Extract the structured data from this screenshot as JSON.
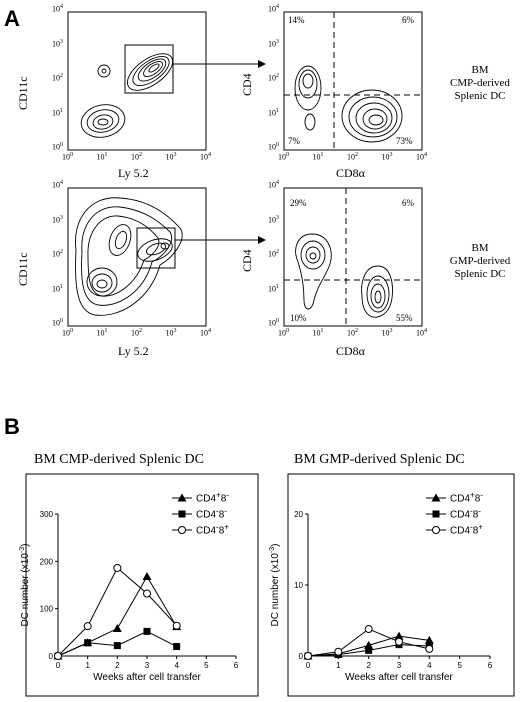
{
  "panel_a": {
    "letter": "A",
    "rows": [
      {
        "gate_plot": {
          "ylabel": "CD11c",
          "xlabel": "Ly 5.2"
        },
        "quad_plot": {
          "ylabel": "CD4",
          "xlabel": "CD8α",
          "quadrants": {
            "ul": "14%",
            "ur": "6%",
            "ll": "7%",
            "lr": "73%"
          }
        },
        "label": [
          "BM",
          "CMP-derived",
          "Splenic DC"
        ]
      },
      {
        "gate_plot": {
          "ylabel": "CD11c",
          "xlabel": "Ly 5.2"
        },
        "quad_plot": {
          "ylabel": "CD4",
          "xlabel": "CD8α",
          "quadrants": {
            "ul": "29%",
            "ur": "6%",
            "ll": "10%",
            "lr": "55%"
          }
        },
        "label": [
          "BM",
          "GMP-derived",
          "Splenic DC"
        ]
      }
    ],
    "log_ticks": [
      "10",
      "10",
      "10",
      "10",
      "10"
    ],
    "log_exps": [
      "0",
      "1",
      "2",
      "3",
      "4"
    ]
  },
  "panel_b": {
    "letter": "B",
    "legend_labels": [
      "CD4+8-",
      "CD4-8-",
      "CD4-8+"
    ],
    "legend_html": [
      {
        "main": "CD4",
        "sup": "+",
        "main2": "8",
        "sup2": "-"
      },
      {
        "main": "CD4",
        "sup": "-",
        "main2": "8",
        "sup2": "-"
      },
      {
        "main": "CD4",
        "sup": "-",
        "main2": "8",
        "sup2": "+"
      }
    ]
  },
  "chart_data": [
    {
      "type": "line",
      "title": "BM CMP-derived Splenic DC",
      "xlabel": "Weeks after cell transfer",
      "ylabel": "DC number (x10-3)",
      "xlim": [
        0,
        6
      ],
      "ylim": [
        0,
        300
      ],
      "xticks": [
        0,
        1,
        2,
        3,
        4,
        5,
        6
      ],
      "yticks": [
        0,
        100,
        200,
        300
      ],
      "legend": "top-right",
      "series": [
        {
          "name": "CD4+8-",
          "marker": "triangle-filled",
          "x": [
            0,
            1,
            2,
            3,
            4
          ],
          "y": [
            0,
            28,
            58,
            168,
            62
          ]
        },
        {
          "name": "CD4-8-",
          "marker": "square-filled",
          "x": [
            0,
            1,
            2,
            3,
            4
          ],
          "y": [
            0,
            28,
            22,
            52,
            20
          ]
        },
        {
          "name": "CD4-8+",
          "marker": "circle-open",
          "x": [
            0,
            1,
            2,
            3,
            4
          ],
          "y": [
            0,
            63,
            186,
            132,
            64
          ]
        }
      ]
    },
    {
      "type": "line",
      "title": "BM GMP-derived Splenic DC",
      "xlabel": "Weeks after cell transfer",
      "ylabel": "DC number (x10-3)",
      "xlim": [
        0,
        6
      ],
      "ylim": [
        0,
        20
      ],
      "xticks": [
        0,
        1,
        2,
        3,
        4,
        5,
        6
      ],
      "yticks": [
        0,
        10,
        20
      ],
      "legend": "top-right",
      "series": [
        {
          "name": "CD4+8-",
          "marker": "triangle-filled",
          "x": [
            0,
            1,
            2,
            3,
            4
          ],
          "y": [
            0,
            0.3,
            1.5,
            2.8,
            2.2
          ]
        },
        {
          "name": "CD4-8-",
          "marker": "square-filled",
          "x": [
            0,
            1,
            2,
            3,
            4
          ],
          "y": [
            0,
            0.2,
            0.8,
            1.6,
            1.4
          ]
        },
        {
          "name": "CD4-8+",
          "marker": "circle-open",
          "x": [
            0,
            1,
            2,
            3,
            4
          ],
          "y": [
            0,
            0.6,
            3.8,
            2.0,
            1.0
          ]
        }
      ]
    }
  ]
}
